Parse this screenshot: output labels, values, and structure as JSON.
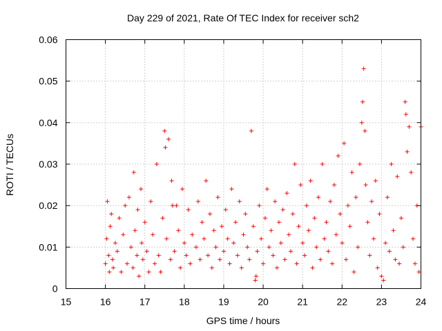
{
  "chart_data": {
    "type": "scatter",
    "title": "Day 229 of 2021, Rate Of TEC Index for receiver sch2",
    "xlabel": "GPS time / hours",
    "ylabel": "ROTI / TECUs",
    "xlim": [
      15,
      24
    ],
    "ylim": [
      0,
      0.06
    ],
    "x_ticks": [
      "15",
      "16",
      "17",
      "18",
      "19",
      "20",
      "21",
      "22",
      "23",
      "24"
    ],
    "y_ticks": [
      "0",
      "0.01",
      "0.02",
      "0.03",
      "0.04",
      "0.05",
      "0.06"
    ],
    "grid": true,
    "marker": "plus",
    "color": "#ff0000",
    "series": [
      {
        "x": [
          16.0,
          16.03,
          16.05,
          16.08,
          16.1,
          16.12,
          16.15,
          16.18,
          16.2,
          16.25,
          16.3,
          16.35,
          16.4,
          16.45,
          16.5,
          16.55,
          16.6,
          16.65,
          16.7,
          16.72,
          16.75,
          16.8,
          16.82,
          16.85,
          16.9,
          16.92,
          16.95,
          17.0,
          17.05,
          17.1,
          17.15,
          17.2,
          17.25,
          17.3,
          17.35,
          17.4,
          17.45,
          17.5,
          17.52,
          17.55,
          17.6,
          17.65,
          17.68,
          17.7,
          17.75,
          17.8,
          17.85,
          17.9,
          17.95,
          18.0,
          18.05,
          18.1,
          18.15,
          18.2,
          18.3,
          18.35,
          18.4,
          18.45,
          18.5,
          18.55,
          18.6,
          18.65,
          18.7,
          18.75,
          18.8,
          18.85,
          18.9,
          18.95,
          19.0,
          19.05,
          19.1,
          19.15,
          19.2,
          19.25,
          19.3,
          19.35,
          19.4,
          19.45,
          19.5,
          19.55,
          19.6,
          19.65,
          19.7,
          19.75,
          19.8,
          19.82,
          19.85,
          19.9,
          19.95,
          20.0,
          20.05,
          20.1,
          20.15,
          20.2,
          20.25,
          20.3,
          20.35,
          20.4,
          20.45,
          20.5,
          20.55,
          20.6,
          20.65,
          20.7,
          20.75,
          20.8,
          20.85,
          20.9,
          20.95,
          21.0,
          21.05,
          21.1,
          21.15,
          21.2,
          21.25,
          21.3,
          21.35,
          21.4,
          21.45,
          21.5,
          21.55,
          21.6,
          21.65,
          21.7,
          21.75,
          21.8,
          21.85,
          21.9,
          21.95,
          22.0,
          22.05,
          22.1,
          22.15,
          22.2,
          22.25,
          22.3,
          22.35,
          22.4,
          22.45,
          22.5,
          22.52,
          22.55,
          22.58,
          22.6,
          22.65,
          22.7,
          22.75,
          22.8,
          22.85,
          22.9,
          22.95,
          23.0,
          23.05,
          23.1,
          23.15,
          23.2,
          23.25,
          23.3,
          23.35,
          23.4,
          23.45,
          23.5,
          23.55,
          23.6,
          23.62,
          23.65,
          23.7,
          23.75,
          23.8,
          23.85,
          23.9,
          23.95,
          24.0
        ],
        "y": [
          0.006,
          0.012,
          0.021,
          0.008,
          0.004,
          0.015,
          0.018,
          0.007,
          0.005,
          0.011,
          0.009,
          0.017,
          0.004,
          0.013,
          0.02,
          0.006,
          0.022,
          0.01,
          0.005,
          0.028,
          0.014,
          0.008,
          0.019,
          0.003,
          0.024,
          0.011,
          0.007,
          0.016,
          0.009,
          0.004,
          0.021,
          0.013,
          0.006,
          0.03,
          0.008,
          0.004,
          0.017,
          0.038,
          0.034,
          0.012,
          0.036,
          0.007,
          0.026,
          0.02,
          0.009,
          0.02,
          0.014,
          0.005,
          0.024,
          0.011,
          0.008,
          0.019,
          0.006,
          0.013,
          0.01,
          0.021,
          0.007,
          0.016,
          0.012,
          0.026,
          0.008,
          0.018,
          0.005,
          0.014,
          0.01,
          0.022,
          0.007,
          0.015,
          0.009,
          0.019,
          0.012,
          0.006,
          0.024,
          0.011,
          0.016,
          0.008,
          0.021,
          0.005,
          0.013,
          0.018,
          0.01,
          0.007,
          0.038,
          0.015,
          0.002,
          0.003,
          0.009,
          0.02,
          0.012,
          0.006,
          0.017,
          0.024,
          0.01,
          0.014,
          0.008,
          0.021,
          0.005,
          0.016,
          0.011,
          0.019,
          0.007,
          0.023,
          0.013,
          0.009,
          0.018,
          0.03,
          0.006,
          0.015,
          0.025,
          0.011,
          0.008,
          0.02,
          0.014,
          0.026,
          0.005,
          0.017,
          0.01,
          0.022,
          0.007,
          0.03,
          0.012,
          0.016,
          0.009,
          0.021,
          0.006,
          0.025,
          0.013,
          0.032,
          0.018,
          0.011,
          0.035,
          0.007,
          0.02,
          0.015,
          0.028,
          0.004,
          0.022,
          0.01,
          0.03,
          0.04,
          0.045,
          0.053,
          0.038,
          0.025,
          0.016,
          0.008,
          0.021,
          0.012,
          0.026,
          0.005,
          0.018,
          0.003,
          0.002,
          0.011,
          0.022,
          0.009,
          0.03,
          0.014,
          0.007,
          0.027,
          0.006,
          0.017,
          0.01,
          0.045,
          0.042,
          0.033,
          0.039,
          0.028,
          0.012,
          0.006,
          0.02,
          0.004,
          0.039
        ]
      }
    ]
  }
}
